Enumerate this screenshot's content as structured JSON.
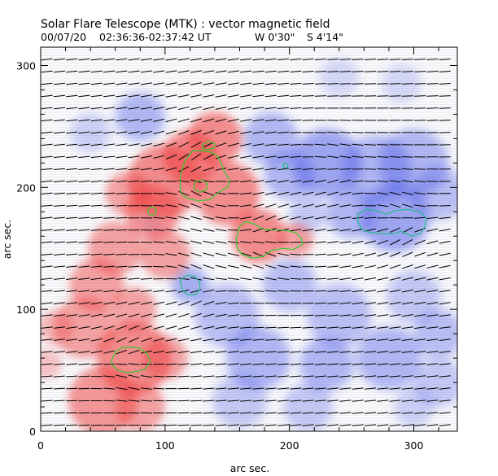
{
  "chart_data": {
    "type": "heatmap",
    "title": "Solar Flare Telescope (MTK) : vector magnetic field",
    "subtitle": {
      "date": "00/07/20",
      "time_range": "02:36:36-02:37:42 UT",
      "longitude": "W 0'30\"",
      "latitude": "S 4'14\""
    },
    "xlabel": "arc sec.",
    "ylabel": "arc sec.",
    "xlim": [
      0,
      335
    ],
    "ylim": [
      0,
      315
    ],
    "x_ticks": [
      0,
      100,
      200,
      300
    ],
    "y_ticks": [
      0,
      100,
      200,
      300
    ],
    "colors": {
      "positive": "#ef4444",
      "negative": "#5563e8",
      "contour": "#33cc33",
      "contour_alt": "#22bb88",
      "vector": "#000000",
      "background": "#ffffff"
    },
    "positive_regions": [
      {
        "cx": 140,
        "cy": 240,
        "r": 22,
        "w": 1.0
      },
      {
        "cx": 120,
        "cy": 225,
        "r": 22,
        "w": 1.0
      },
      {
        "cx": 100,
        "cy": 205,
        "r": 30,
        "w": 1.0
      },
      {
        "cx": 150,
        "cy": 195,
        "r": 26,
        "w": 1.0
      },
      {
        "cx": 70,
        "cy": 195,
        "r": 18,
        "w": 0.8
      },
      {
        "cx": 90,
        "cy": 180,
        "r": 22,
        "w": 0.9
      },
      {
        "cx": 175,
        "cy": 160,
        "r": 22,
        "w": 1.0
      },
      {
        "cx": 205,
        "cy": 157,
        "r": 14,
        "w": 0.8
      },
      {
        "cx": 60,
        "cy": 150,
        "r": 22,
        "w": 0.8
      },
      {
        "cx": 100,
        "cy": 145,
        "r": 20,
        "w": 0.8
      },
      {
        "cx": 45,
        "cy": 120,
        "r": 22,
        "w": 0.8
      },
      {
        "cx": 35,
        "cy": 85,
        "r": 25,
        "w": 0.8
      },
      {
        "cx": 75,
        "cy": 100,
        "r": 18,
        "w": 0.8
      },
      {
        "cx": 75,
        "cy": 60,
        "r": 30,
        "w": 1.0
      },
      {
        "cx": 100,
        "cy": 60,
        "r": 18,
        "w": 0.8
      },
      {
        "cx": 50,
        "cy": 25,
        "r": 28,
        "w": 0.9
      },
      {
        "cx": 80,
        "cy": 20,
        "r": 20,
        "w": 0.8
      },
      {
        "cx": 12,
        "cy": 85,
        "r": 14,
        "w": 0.6
      },
      {
        "cx": 5,
        "cy": 55,
        "r": 12,
        "w": 0.5
      }
    ],
    "negative_regions": [
      {
        "cx": 80,
        "cy": 258,
        "r": 20,
        "w": 0.8
      },
      {
        "cx": 185,
        "cy": 240,
        "r": 22,
        "w": 0.8
      },
      {
        "cx": 230,
        "cy": 220,
        "r": 28,
        "w": 1.0
      },
      {
        "cx": 200,
        "cy": 210,
        "r": 20,
        "w": 0.8
      },
      {
        "cx": 270,
        "cy": 215,
        "r": 28,
        "w": 0.8
      },
      {
        "cx": 300,
        "cy": 220,
        "r": 28,
        "w": 0.8
      },
      {
        "cx": 320,
        "cy": 195,
        "r": 22,
        "w": 0.7
      },
      {
        "cx": 285,
        "cy": 175,
        "r": 28,
        "w": 1.0
      },
      {
        "cx": 250,
        "cy": 178,
        "r": 20,
        "w": 0.8
      },
      {
        "cx": 215,
        "cy": 178,
        "r": 15,
        "w": 0.6
      },
      {
        "cx": 120,
        "cy": 120,
        "r": 15,
        "w": 0.9
      },
      {
        "cx": 200,
        "cy": 120,
        "r": 22,
        "w": 0.7
      },
      {
        "cx": 150,
        "cy": 95,
        "r": 26,
        "w": 0.7
      },
      {
        "cx": 240,
        "cy": 95,
        "r": 26,
        "w": 0.7
      },
      {
        "cx": 300,
        "cy": 110,
        "r": 22,
        "w": 0.6
      },
      {
        "cx": 320,
        "cy": 80,
        "r": 20,
        "w": 0.7
      },
      {
        "cx": 175,
        "cy": 60,
        "r": 26,
        "w": 0.8
      },
      {
        "cx": 230,
        "cy": 55,
        "r": 22,
        "w": 0.8
      },
      {
        "cx": 280,
        "cy": 60,
        "r": 26,
        "w": 0.8
      },
      {
        "cx": 320,
        "cy": 40,
        "r": 20,
        "w": 0.6
      },
      {
        "cx": 160,
        "cy": 25,
        "r": 22,
        "w": 0.6
      },
      {
        "cx": 215,
        "cy": 20,
        "r": 20,
        "w": 0.6
      },
      {
        "cx": 300,
        "cy": 20,
        "r": 16,
        "w": 0.5
      },
      {
        "cx": 40,
        "cy": 245,
        "r": 16,
        "w": 0.5
      },
      {
        "cx": 240,
        "cy": 290,
        "r": 16,
        "w": 0.4
      },
      {
        "cx": 290,
        "cy": 285,
        "r": 16,
        "w": 0.4
      },
      {
        "cx": 90,
        "cy": 170,
        "r": 8,
        "w": 0.4
      }
    ],
    "contours": [
      {
        "points": [
          [
            122,
            230
          ],
          [
            128,
            230
          ],
          [
            137,
            229
          ],
          [
            142,
            226
          ],
          [
            145,
            220
          ],
          [
            148,
            212
          ],
          [
            152,
            206
          ],
          [
            150,
            200
          ],
          [
            143,
            196
          ],
          [
            136,
            190
          ],
          [
            127,
            189
          ],
          [
            118,
            191
          ],
          [
            113,
            195
          ],
          [
            112,
            203
          ],
          [
            113,
            212
          ],
          [
            116,
            222
          ]
        ],
        "color": "#33cc33"
      },
      {
        "points": [
          [
            125,
            205
          ],
          [
            130,
            206
          ],
          [
            134,
            203
          ],
          [
            133,
            198
          ],
          [
            128,
            196
          ],
          [
            124,
            198
          ],
          [
            123,
            202
          ]
        ],
        "color": "#33cc33"
      },
      {
        "points": [
          [
            130,
            235
          ],
          [
            135,
            238
          ],
          [
            140,
            236
          ],
          [
            139,
            232
          ],
          [
            134,
            231
          ],
          [
            130,
            232
          ]
        ],
        "color": "#33cc33"
      },
      {
        "points": [
          [
            87,
            183
          ],
          [
            90,
            184
          ],
          [
            93,
            182
          ],
          [
            92,
            178
          ],
          [
            88,
            177
          ],
          [
            86,
            180
          ]
        ],
        "color": "#33cc33"
      },
      {
        "points": [
          [
            160,
            168
          ],
          [
            165,
            172
          ],
          [
            172,
            170
          ],
          [
            178,
            166
          ],
          [
            186,
            165
          ],
          [
            195,
            165
          ],
          [
            205,
            163
          ],
          [
            210,
            158
          ],
          [
            210,
            153
          ],
          [
            203,
            149
          ],
          [
            195,
            150
          ],
          [
            185,
            148
          ],
          [
            178,
            143
          ],
          [
            170,
            142
          ],
          [
            162,
            145
          ],
          [
            158,
            150
          ],
          [
            157,
            158
          ]
        ],
        "color": "#33cc33"
      },
      {
        "points": [
          [
            255,
            178
          ],
          [
            262,
            182
          ],
          [
            270,
            181
          ],
          [
            278,
            178
          ],
          [
            285,
            181
          ],
          [
            295,
            182
          ],
          [
            305,
            180
          ],
          [
            310,
            175
          ],
          [
            309,
            168
          ],
          [
            305,
            162
          ],
          [
            298,
            160
          ],
          [
            290,
            164
          ],
          [
            283,
            162
          ],
          [
            275,
            162
          ],
          [
            265,
            163
          ],
          [
            258,
            166
          ],
          [
            255,
            172
          ]
        ],
        "color": "#22bb88"
      },
      {
        "points": [
          [
            112,
            124
          ],
          [
            118,
            128
          ],
          [
            124,
            127
          ],
          [
            128,
            122
          ],
          [
            128,
            116
          ],
          [
            124,
            112
          ],
          [
            118,
            112
          ],
          [
            114,
            116
          ]
        ],
        "color": "#22bb88"
      },
      {
        "points": [
          [
            195,
            219
          ],
          [
            197,
            220
          ],
          [
            199,
            218
          ],
          [
            198,
            216
          ],
          [
            195,
            216
          ]
        ],
        "color": "#22bb88"
      },
      {
        "points": [
          [
            57,
            58
          ],
          [
            60,
            65
          ],
          [
            66,
            69
          ],
          [
            74,
            69
          ],
          [
            80,
            68
          ],
          [
            86,
            63
          ],
          [
            88,
            57
          ],
          [
            84,
            51
          ],
          [
            77,
            49
          ],
          [
            70,
            48
          ],
          [
            62,
            50
          ],
          [
            57,
            55
          ]
        ],
        "color": "#33cc33"
      }
    ],
    "vector_grid": {
      "x_start": 5,
      "x_end": 330,
      "y_start": 5,
      "y_end": 305,
      "step": 10
    },
    "vector_field_model": {
      "base_angle_deg": 5,
      "sources": [
        {
          "cx": 130,
          "cy": 210,
          "s": 0.6
        },
        {
          "cx": 185,
          "cy": 158,
          "s": 0.5
        },
        {
          "cx": 75,
          "cy": 60,
          "s": 0.4
        },
        {
          "cx": 285,
          "cy": 172,
          "s": -0.5
        },
        {
          "cx": 120,
          "cy": 120,
          "s": -0.4
        },
        {
          "cx": 235,
          "cy": 215,
          "s": -0.3
        }
      ]
    }
  }
}
